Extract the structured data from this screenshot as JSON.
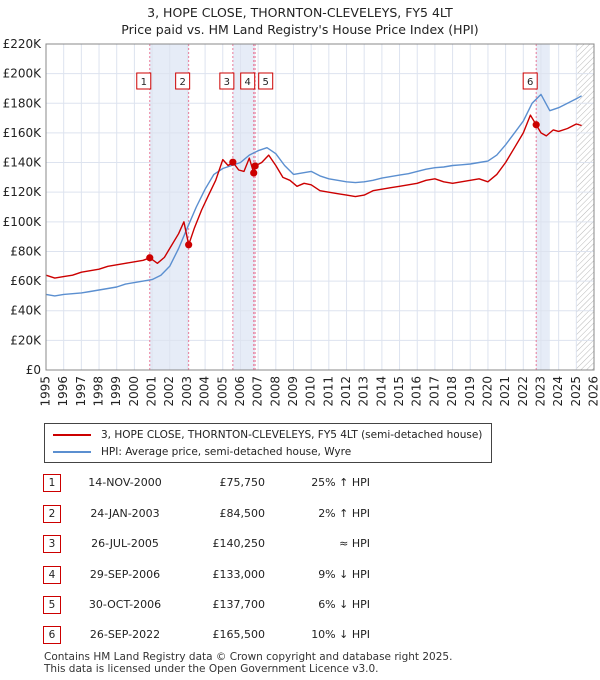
{
  "title": {
    "line1": "3, HOPE CLOSE, THORNTON-CLEVELEYS, FY5 4LT",
    "line2": "Price paid vs. HM Land Registry's House Price Index (HPI)"
  },
  "colors": {
    "property": "#cc0000",
    "hpi": "#5b8fd0",
    "shade": "#e6ecf7",
    "vline": "#e87a9a",
    "grid": "#dde3ef"
  },
  "chart_data": {
    "type": "line",
    "title": "Price paid vs. HM Land Registry's House Price Index (HPI)",
    "xlim": [
      1995,
      2026
    ],
    "ylim": [
      0,
      220000
    ],
    "x_ticks": [
      "1995",
      "1996",
      "1997",
      "1998",
      "1999",
      "2000",
      "2001",
      "2002",
      "2003",
      "2004",
      "2005",
      "2006",
      "2007",
      "2008",
      "2009",
      "2010",
      "2011",
      "2012",
      "2013",
      "2014",
      "2015",
      "2016",
      "2017",
      "2018",
      "2019",
      "2020",
      "2021",
      "2022",
      "2023",
      "2024",
      "2025",
      "2026"
    ],
    "y_ticks": [
      "£0",
      "£20K",
      "£40K",
      "£60K",
      "£80K",
      "£100K",
      "£120K",
      "£140K",
      "£160K",
      "£180K",
      "£200K",
      "£220K"
    ],
    "y_tick_values": [
      0,
      20000,
      40000,
      60000,
      80000,
      100000,
      120000,
      140000,
      160000,
      180000,
      200000,
      220000
    ],
    "grid": true,
    "legend_position": "below",
    "shaded_spans": [
      [
        2000.87,
        2003.07
      ],
      [
        2005.57,
        2006.83
      ],
      [
        2022.73,
        2023.5
      ]
    ],
    "hatched_span": [
      2025.0,
      2026.0
    ],
    "series": [
      {
        "name": "3, HOPE CLOSE, THORNTON-CLEVELEYS, FY5 4LT (semi-detached house)",
        "x": [
          1995.0,
          1995.5,
          1996.0,
          1996.5,
          1997.0,
          1997.5,
          1998.0,
          1998.5,
          1999.0,
          1999.5,
          2000.0,
          2000.5,
          2000.87,
          2001.3,
          2001.7,
          2002.0,
          2002.5,
          2002.8,
          2003.07,
          2003.4,
          2003.8,
          2004.2,
          2004.6,
          2005.0,
          2005.3,
          2005.57,
          2005.9,
          2006.2,
          2006.5,
          2006.75,
          2006.83,
          2007.2,
          2007.6,
          2008.0,
          2008.4,
          2008.8,
          2009.2,
          2009.6,
          2010.0,
          2010.5,
          2011.0,
          2011.5,
          2012.0,
          2012.5,
          2013.0,
          2013.5,
          2014.0,
          2014.5,
          2015.0,
          2015.5,
          2016.0,
          2016.5,
          2017.0,
          2017.5,
          2018.0,
          2018.5,
          2019.0,
          2019.5,
          2020.0,
          2020.5,
          2021.0,
          2021.5,
          2022.0,
          2022.4,
          2022.73,
          2023.0,
          2023.3,
          2023.7,
          2024.0,
          2024.5,
          2025.0,
          2025.3
        ],
        "values": [
          64000,
          62000,
          63000,
          64000,
          66000,
          67000,
          68000,
          70000,
          71000,
          72000,
          73000,
          74000,
          75750,
          72000,
          76000,
          82000,
          92000,
          100000,
          84500,
          96000,
          108000,
          118000,
          128000,
          142000,
          138000,
          140250,
          135000,
          134000,
          143000,
          133000,
          137700,
          140000,
          145000,
          138000,
          130000,
          128000,
          124000,
          126000,
          125000,
          121000,
          120000,
          119000,
          118000,
          117000,
          118000,
          121000,
          122000,
          123000,
          124000,
          125000,
          126000,
          128000,
          129000,
          127000,
          126000,
          127000,
          128000,
          129000,
          127000,
          132000,
          140000,
          150000,
          160000,
          172000,
          165500,
          160000,
          158000,
          162000,
          161000,
          163000,
          166000,
          165000
        ]
      },
      {
        "name": "HPI: Average price, semi-detached house, Wyre",
        "x": [
          1995.0,
          1995.5,
          1996.0,
          1996.5,
          1997.0,
          1997.5,
          1998.0,
          1998.5,
          1999.0,
          1999.5,
          2000.0,
          2000.5,
          2001.0,
          2001.5,
          2002.0,
          2002.5,
          2003.0,
          2003.5,
          2004.0,
          2004.5,
          2005.0,
          2005.5,
          2006.0,
          2006.5,
          2007.0,
          2007.5,
          2008.0,
          2008.5,
          2009.0,
          2009.5,
          2010.0,
          2010.5,
          2011.0,
          2011.5,
          2012.0,
          2012.5,
          2013.0,
          2013.5,
          2014.0,
          2014.5,
          2015.0,
          2015.5,
          2016.0,
          2016.5,
          2017.0,
          2017.5,
          2018.0,
          2018.5,
          2019.0,
          2019.5,
          2020.0,
          2020.5,
          2021.0,
          2021.5,
          2022.0,
          2022.5,
          2023.0,
          2023.5,
          2024.0,
          2024.5,
          2025.0,
          2025.3
        ],
        "values": [
          51000,
          50000,
          51000,
          51500,
          52000,
          53000,
          54000,
          55000,
          56000,
          58000,
          59000,
          60000,
          61000,
          64000,
          70000,
          82000,
          96000,
          110000,
          122000,
          132000,
          136000,
          138000,
          140000,
          145000,
          148000,
          150000,
          146000,
          138000,
          132000,
          133000,
          134000,
          131000,
          129000,
          128000,
          127000,
          126500,
          127000,
          128000,
          129500,
          130500,
          131500,
          132500,
          134000,
          135500,
          136500,
          137000,
          138000,
          138500,
          139000,
          140000,
          141000,
          145000,
          152000,
          160000,
          168000,
          180000,
          186000,
          175000,
          177000,
          180000,
          183000,
          185000
        ]
      }
    ],
    "sales": [
      {
        "n": "1",
        "x": 2000.87,
        "value": 75750
      },
      {
        "n": "2",
        "x": 2003.07,
        "value": 84500
      },
      {
        "n": "3",
        "x": 2005.57,
        "value": 140250
      },
      {
        "n": "4",
        "x": 2006.75,
        "value": 133000
      },
      {
        "n": "5",
        "x": 2006.83,
        "value": 137700
      },
      {
        "n": "6",
        "x": 2022.73,
        "value": 165500
      }
    ]
  },
  "legend": {
    "property_label": "3, HOPE CLOSE, THORNTON-CLEVELEYS, FY5 4LT (semi-detached house)",
    "hpi_label": "HPI: Average price, semi-detached house, Wyre"
  },
  "sales_table": [
    {
      "n": "1",
      "date": "14-NOV-2000",
      "price": "£75,750",
      "hpi": "25% ↑ HPI"
    },
    {
      "n": "2",
      "date": "24-JAN-2003",
      "price": "£84,500",
      "hpi": "2% ↑ HPI"
    },
    {
      "n": "3",
      "date": "26-JUL-2005",
      "price": "£140,250",
      "hpi": "≈ HPI"
    },
    {
      "n": "4",
      "date": "29-SEP-2006",
      "price": "£133,000",
      "hpi": "9% ↓ HPI"
    },
    {
      "n": "5",
      "date": "30-OCT-2006",
      "price": "£137,700",
      "hpi": "6% ↓ HPI"
    },
    {
      "n": "6",
      "date": "26-SEP-2022",
      "price": "£165,500",
      "hpi": "10% ↓ HPI"
    }
  ],
  "footer": {
    "line1": "Contains HM Land Registry data © Crown copyright and database right 2025.",
    "line2": "This data is licensed under the Open Government Licence v3.0."
  }
}
